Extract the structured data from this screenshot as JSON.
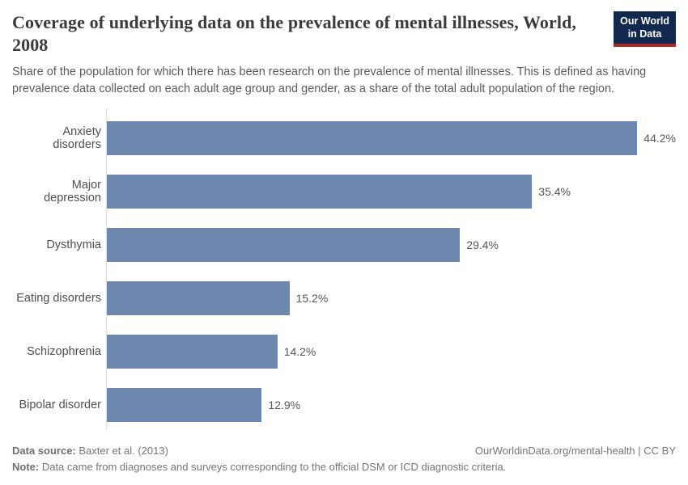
{
  "header": {
    "title": "Coverage of underlying data on the prevalence of mental illnesses, World, 2008",
    "subtitle": "Share of the population for which there has been research on the prevalence of mental illnesses. This is defined as having prevalence data collected on each adult age group and gender, as a share of the total adult population of the region.",
    "logo": {
      "line1": "Our World",
      "line2": "in Data"
    }
  },
  "chart_data": {
    "type": "bar",
    "orientation": "horizontal",
    "title": "Coverage of underlying data on the prevalence of mental illnesses, World, 2008",
    "categories": [
      "Anxiety disorders",
      "Major depression",
      "Dysthymia",
      "Eating disorders",
      "Schizophrenia",
      "Bipolar disorder"
    ],
    "values": [
      44.2,
      35.4,
      29.4,
      15.2,
      14.2,
      12.9
    ],
    "value_labels": [
      "44.2%",
      "35.4%",
      "29.4%",
      "15.2%",
      "14.2%",
      "12.9%"
    ],
    "xlabel": "",
    "ylabel": "",
    "xlim": [
      0,
      44.2
    ],
    "grid": false,
    "legend": false,
    "bar_color": "#6e87ae",
    "axis_line_color": "#dcdcdc"
  },
  "footer": {
    "source_label": "Data source:",
    "source_value": " Baxter et al. (2013)",
    "credit": "OurWorldinData.org/mental-health | CC BY",
    "note_label": "Note:",
    "note_value": " Data came from diagnoses and surveys corresponding to the official DSM or ICD diagnostic criteria."
  }
}
